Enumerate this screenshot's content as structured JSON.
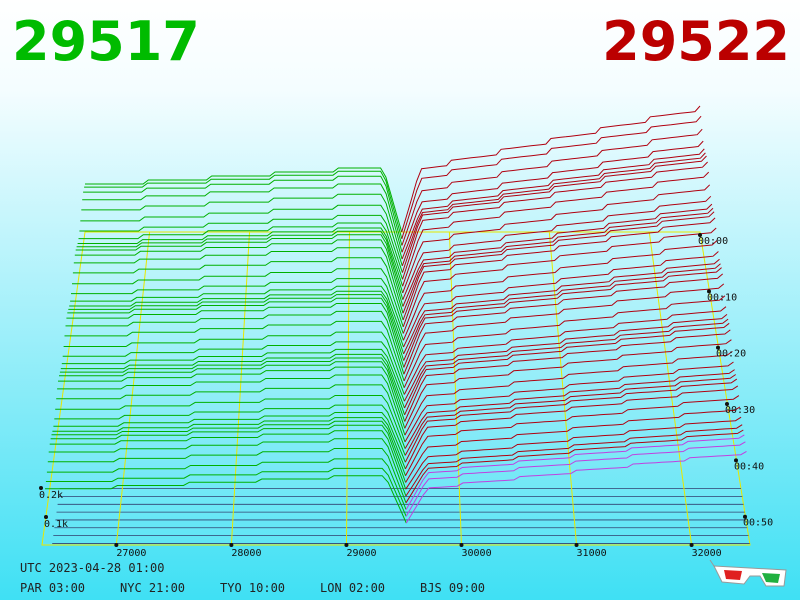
{
  "header": {
    "bid": "29517",
    "ask": "29522"
  },
  "price_axis": {
    "ticks": [
      "27000",
      "28000",
      "29000",
      "30000",
      "31000",
      "32000"
    ]
  },
  "time_axis": {
    "ticks": [
      "00:00",
      "00:10",
      "00:20",
      "00:30",
      "00:40",
      "00:50"
    ]
  },
  "volume_axis": {
    "ticks": [
      "0.2k",
      "0.1k"
    ]
  },
  "footer": {
    "utc": "UTC 2023-04-28 01:00",
    "clocks": [
      "PAR 03:00",
      "NYC 21:00",
      "TYO 10:00",
      "LON 02:00",
      "BJS 09:00"
    ]
  }
}
